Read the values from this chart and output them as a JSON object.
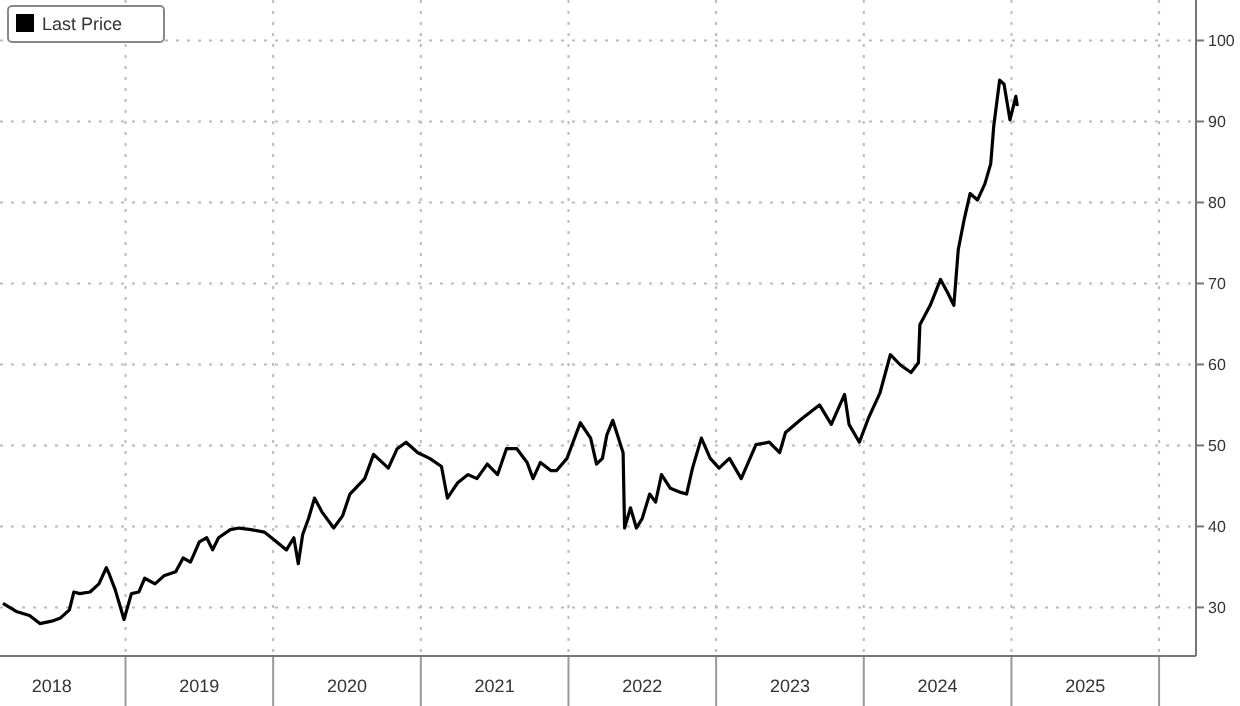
{
  "chart_data": {
    "type": "line",
    "legend": "top left",
    "grid": true,
    "series": [
      {
        "name": "Last Price",
        "color": "#000000",
        "x": [
          2018.17,
          2018.26,
          2018.35,
          2018.42,
          2018.5,
          2018.56,
          2018.62,
          2018.65,
          2018.69,
          2018.76,
          2018.82,
          2018.87,
          2018.89,
          2018.93,
          2018.99,
          2019.04,
          2019.09,
          2019.13,
          2019.2,
          2019.26,
          2019.34,
          2019.39,
          2019.44,
          2019.5,
          2019.55,
          2019.59,
          2019.63,
          2019.71,
          2019.77,
          2019.85,
          2019.94,
          2020.01,
          2020.09,
          2020.14,
          2020.17,
          2020.2,
          2020.24,
          2020.28,
          2020.33,
          2020.41,
          2020.47,
          2020.52,
          2020.62,
          2020.68,
          2020.78,
          2020.84,
          2020.9,
          2020.98,
          2021.06,
          2021.14,
          2021.18,
          2021.25,
          2021.32,
          2021.38,
          2021.45,
          2021.52,
          2021.58,
          2021.65,
          2021.72,
          2021.76,
          2021.81,
          2021.88,
          2021.92,
          2021.99,
          2022.08,
          2022.15,
          2022.19,
          2022.23,
          2022.26,
          2022.3,
          2022.37,
          2022.38,
          2022.42,
          2022.46,
          2022.5,
          2022.55,
          2022.59,
          2022.63,
          2022.69,
          2022.76,
          2022.8,
          2022.84,
          2022.9,
          2022.96,
          2023.02,
          2023.09,
          2023.17,
          2023.27,
          2023.36,
          2023.43,
          2023.47,
          2023.58,
          2023.7,
          2023.78,
          2023.87,
          2023.9,
          2023.97,
          2024.03,
          2024.11,
          2024.18,
          2024.25,
          2024.32,
          2024.37,
          2024.38,
          2024.45,
          2024.52,
          2024.57,
          2024.61,
          2024.64,
          2024.68,
          2024.72,
          2024.77,
          2024.82,
          2024.86,
          2024.88,
          2024.92,
          2024.95,
          2024.99,
          2025.03,
          2025.04
        ],
        "values": [
          30.5,
          29.5,
          29.0,
          28.0,
          28.3,
          28.7,
          29.7,
          31.9,
          31.7,
          31.9,
          32.9,
          34.9,
          34.1,
          32.2,
          28.5,
          31.7,
          31.9,
          33.6,
          32.9,
          33.9,
          34.4,
          36.1,
          35.6,
          38.1,
          38.6,
          37.1,
          38.6,
          39.6,
          39.8,
          39.6,
          39.3,
          38.3,
          37.1,
          38.6,
          35.4,
          39.0,
          41.0,
          43.5,
          41.8,
          39.8,
          41.3,
          44.0,
          45.9,
          48.9,
          47.2,
          49.6,
          50.4,
          49.1,
          48.4,
          47.4,
          43.5,
          45.4,
          46.4,
          45.9,
          47.7,
          46.4,
          49.6,
          49.6,
          47.9,
          45.9,
          47.9,
          46.9,
          46.9,
          48.4,
          52.8,
          50.9,
          47.7,
          48.4,
          51.3,
          53.1,
          49.1,
          39.8,
          42.3,
          39.8,
          41.0,
          44.0,
          43.0,
          46.4,
          44.7,
          44.2,
          44.0,
          47.2,
          50.9,
          48.4,
          47.2,
          48.4,
          45.9,
          50.1,
          50.4,
          49.1,
          51.6,
          53.3,
          55.0,
          52.6,
          56.3,
          52.6,
          50.4,
          53.3,
          56.5,
          61.2,
          59.9,
          59.0,
          60.2,
          64.9,
          67.3,
          70.5,
          68.8,
          67.3,
          74.2,
          77.9,
          81.1,
          80.3,
          82.3,
          84.8,
          89.4,
          95.1,
          94.6,
          90.2,
          93.1,
          91.9
        ]
      }
    ],
    "xlim": [
      2018.15,
      2026.25
    ],
    "xticks": [
      {
        "value": 2018.5,
        "label": "2018"
      },
      {
        "value": 2019,
        "label": null
      },
      {
        "value": 2019.5,
        "label": "2019"
      },
      {
        "value": 2020,
        "label": null
      },
      {
        "value": 2020.5,
        "label": "2020"
      },
      {
        "value": 2021,
        "label": null
      },
      {
        "value": 2021.5,
        "label": "2021"
      },
      {
        "value": 2022,
        "label": null
      },
      {
        "value": 2022.5,
        "label": "2022"
      },
      {
        "value": 2023,
        "label": null
      },
      {
        "value": 2023.5,
        "label": "2023"
      },
      {
        "value": 2024,
        "label": null
      },
      {
        "value": 2024.5,
        "label": "2024"
      },
      {
        "value": 2025,
        "label": null
      },
      {
        "value": 2025.5,
        "label": "2025"
      },
      {
        "value": 2026,
        "label": null
      }
    ],
    "ylim": [
      24,
      105
    ],
    "yticks": [
      30,
      40,
      50,
      60,
      70,
      80,
      90,
      100
    ]
  }
}
